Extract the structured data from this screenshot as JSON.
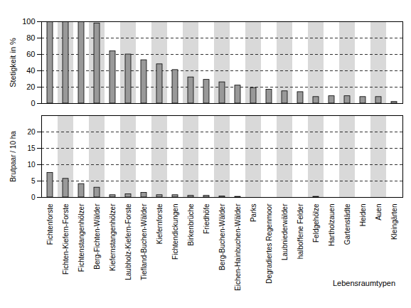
{
  "chart_data": [
    {
      "type": "bar",
      "y_label": "Stetigkeit in %",
      "categories": [
        "Fichtenforste",
        "Fichten-Kiefern-Forste",
        "Fichtenstangenhölzer",
        "Berg-Fichten-Wälder",
        "Kiefernstangenhölzer",
        "Laubholz-Kiefern-Forste",
        "Tiefland-Buchen-Wälder",
        "Kiefernforste",
        "Fichtendickungen",
        "Birkenbrüche",
        "Friedhöfe",
        "Berg-Buchen-Wälder",
        "Eichen-Hainbuchen-Wälder",
        "Parks",
        "Degradiertes Regenmoor",
        "Laubniederwälder",
        "halboffene Felder",
        "Feldgehölze",
        "Hartholzauen",
        "Gartenstädte",
        "Heiden",
        "Auen",
        "Kleingärten"
      ],
      "values": [
        100,
        100,
        100,
        98,
        64,
        60,
        53,
        48,
        41,
        32,
        29,
        26,
        22,
        19,
        17,
        15,
        14,
        8,
        9,
        9,
        8,
        8,
        2
      ],
      "color": "#999999",
      "ylim": [
        0,
        100
      ],
      "yticks": [
        0,
        20,
        40,
        60,
        80,
        100
      ],
      "grid": true,
      "tick_labels": "y"
    },
    {
      "type": "bar",
      "y_label": "Brutpaar / 10 ha",
      "x_label": "Lebensraumtypen",
      "categories": [
        "Fichtenforste",
        "Fichten-Kiefern-Forste",
        "Fichtenstangenhölzer",
        "Berg-Fichten-Wälder",
        "Kiefernstangenhölzer",
        "Laubholz-Kiefern-Forste",
        "Tiefland-Buchen-Wälder",
        "Kiefernforste",
        "Fichtendickungen",
        "Birkenbrüche",
        "Friedhöfe",
        "Berg-Buchen-Wälder",
        "Eichen-Hainbuchen-Wälder",
        "Parks",
        "Degradiertes Regenmoor",
        "Laubniederwälder",
        "halboffene Felder",
        "Feldgehölze",
        "Hartholzauen",
        "Gartenstädte",
        "Heiden",
        "Auen",
        "Kleingärten"
      ],
      "values": [
        7.5,
        5.7,
        4.1,
        3.0,
        0.7,
        1.0,
        1.4,
        0.7,
        0.7,
        0.5,
        0.5,
        0.3,
        0.2,
        0,
        0,
        0,
        0,
        0.2,
        0,
        0,
        0,
        0,
        0
      ],
      "color": "#999999",
      "ylim": [
        0,
        25
      ],
      "yticks": [
        0,
        5,
        10,
        15,
        20
      ],
      "grid": true
    }
  ]
}
